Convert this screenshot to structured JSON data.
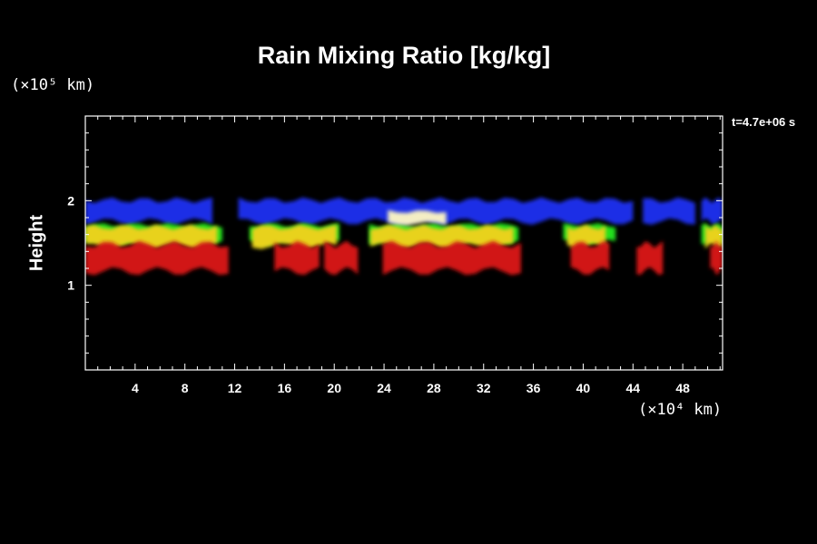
{
  "chart_data": {
    "type": "heatmap",
    "title": "Rain Mixing Ratio [kg/kg]",
    "ylabel": "Height",
    "xlabel_unit": "(×10⁴ km)",
    "ylabel_unit": "(×10⁵ km)",
    "time_label": "t=4.7e+06 s",
    "xlim": [
      0,
      51.2
    ],
    "ylim": [
      0,
      3
    ],
    "xticks": [
      4,
      8,
      12,
      16,
      20,
      24,
      28,
      32,
      36,
      40,
      44,
      48
    ],
    "yticks": [
      1,
      2
    ],
    "colors": {
      "blue": "#1f2ee6",
      "green": "#22e01b",
      "yellow": "#e8d21a",
      "pale": "#f4eec4",
      "red": "#d11313"
    },
    "layers": [
      {
        "level": "blue",
        "band": [
          1.74,
          2.02
        ],
        "segments": [
          [
            0,
            10.2
          ],
          [
            12.3,
            44
          ],
          [
            44.8,
            49
          ],
          [
            49.5,
            51.2
          ]
        ]
      },
      {
        "level": "green",
        "band": [
          1.5,
          1.72
        ],
        "segments": [
          [
            0,
            11
          ],
          [
            13.2,
            20.4
          ],
          [
            22.8,
            34.8
          ],
          [
            38.4,
            42.6
          ],
          [
            49.5,
            51.2
          ]
        ]
      },
      {
        "level": "yellow",
        "band": [
          1.45,
          1.7
        ],
        "segments": [
          [
            0,
            10.6
          ],
          [
            13.4,
            20.2
          ],
          [
            22.9,
            34.4
          ],
          [
            38.7,
            41.8
          ],
          [
            49.8,
            51.2
          ]
        ]
      },
      {
        "level": "pale",
        "band": [
          1.72,
          1.88
        ],
        "segments": [
          [
            24.3,
            29
          ]
        ]
      },
      {
        "level": "red",
        "band": [
          1.15,
          1.5
        ],
        "segments": [
          [
            0,
            11.5
          ],
          [
            15.2,
            18.8
          ],
          [
            19.2,
            21.9
          ],
          [
            23.9,
            35
          ],
          [
            39,
            42.1
          ],
          [
            44.3,
            46.4
          ],
          [
            50.2,
            51.2
          ]
        ]
      }
    ]
  }
}
